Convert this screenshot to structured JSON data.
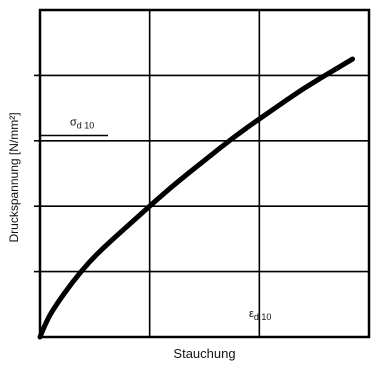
{
  "chart_data": {
    "type": "line",
    "title": "",
    "xlabel": "Stauchung",
    "ylabel": "Druckspannung [N/mm²]",
    "xlim": [
      0,
      1
    ],
    "ylim": [
      0,
      1
    ],
    "grid": true,
    "grid_divisions": {
      "x": 3,
      "y": 5
    },
    "tick_labels_shown": false,
    "series": [
      {
        "x": [
          0.0,
          0.02,
          0.05,
          0.1,
          0.15,
          0.2,
          0.3,
          0.4,
          0.5,
          0.6,
          0.7,
          0.8,
          0.9,
          0.95
        ],
        "y": [
          0.0,
          0.05,
          0.1,
          0.17,
          0.23,
          0.28,
          0.37,
          0.46,
          0.54,
          0.62,
          0.69,
          0.76,
          0.82,
          0.85
        ]
      }
    ],
    "annotations": {
      "sigma": {
        "main": "σ",
        "sub": "d 10",
        "y": 0.61
      },
      "epsilon": {
        "main": "ε",
        "sub": "d 10",
        "x": 0.69
      }
    }
  }
}
